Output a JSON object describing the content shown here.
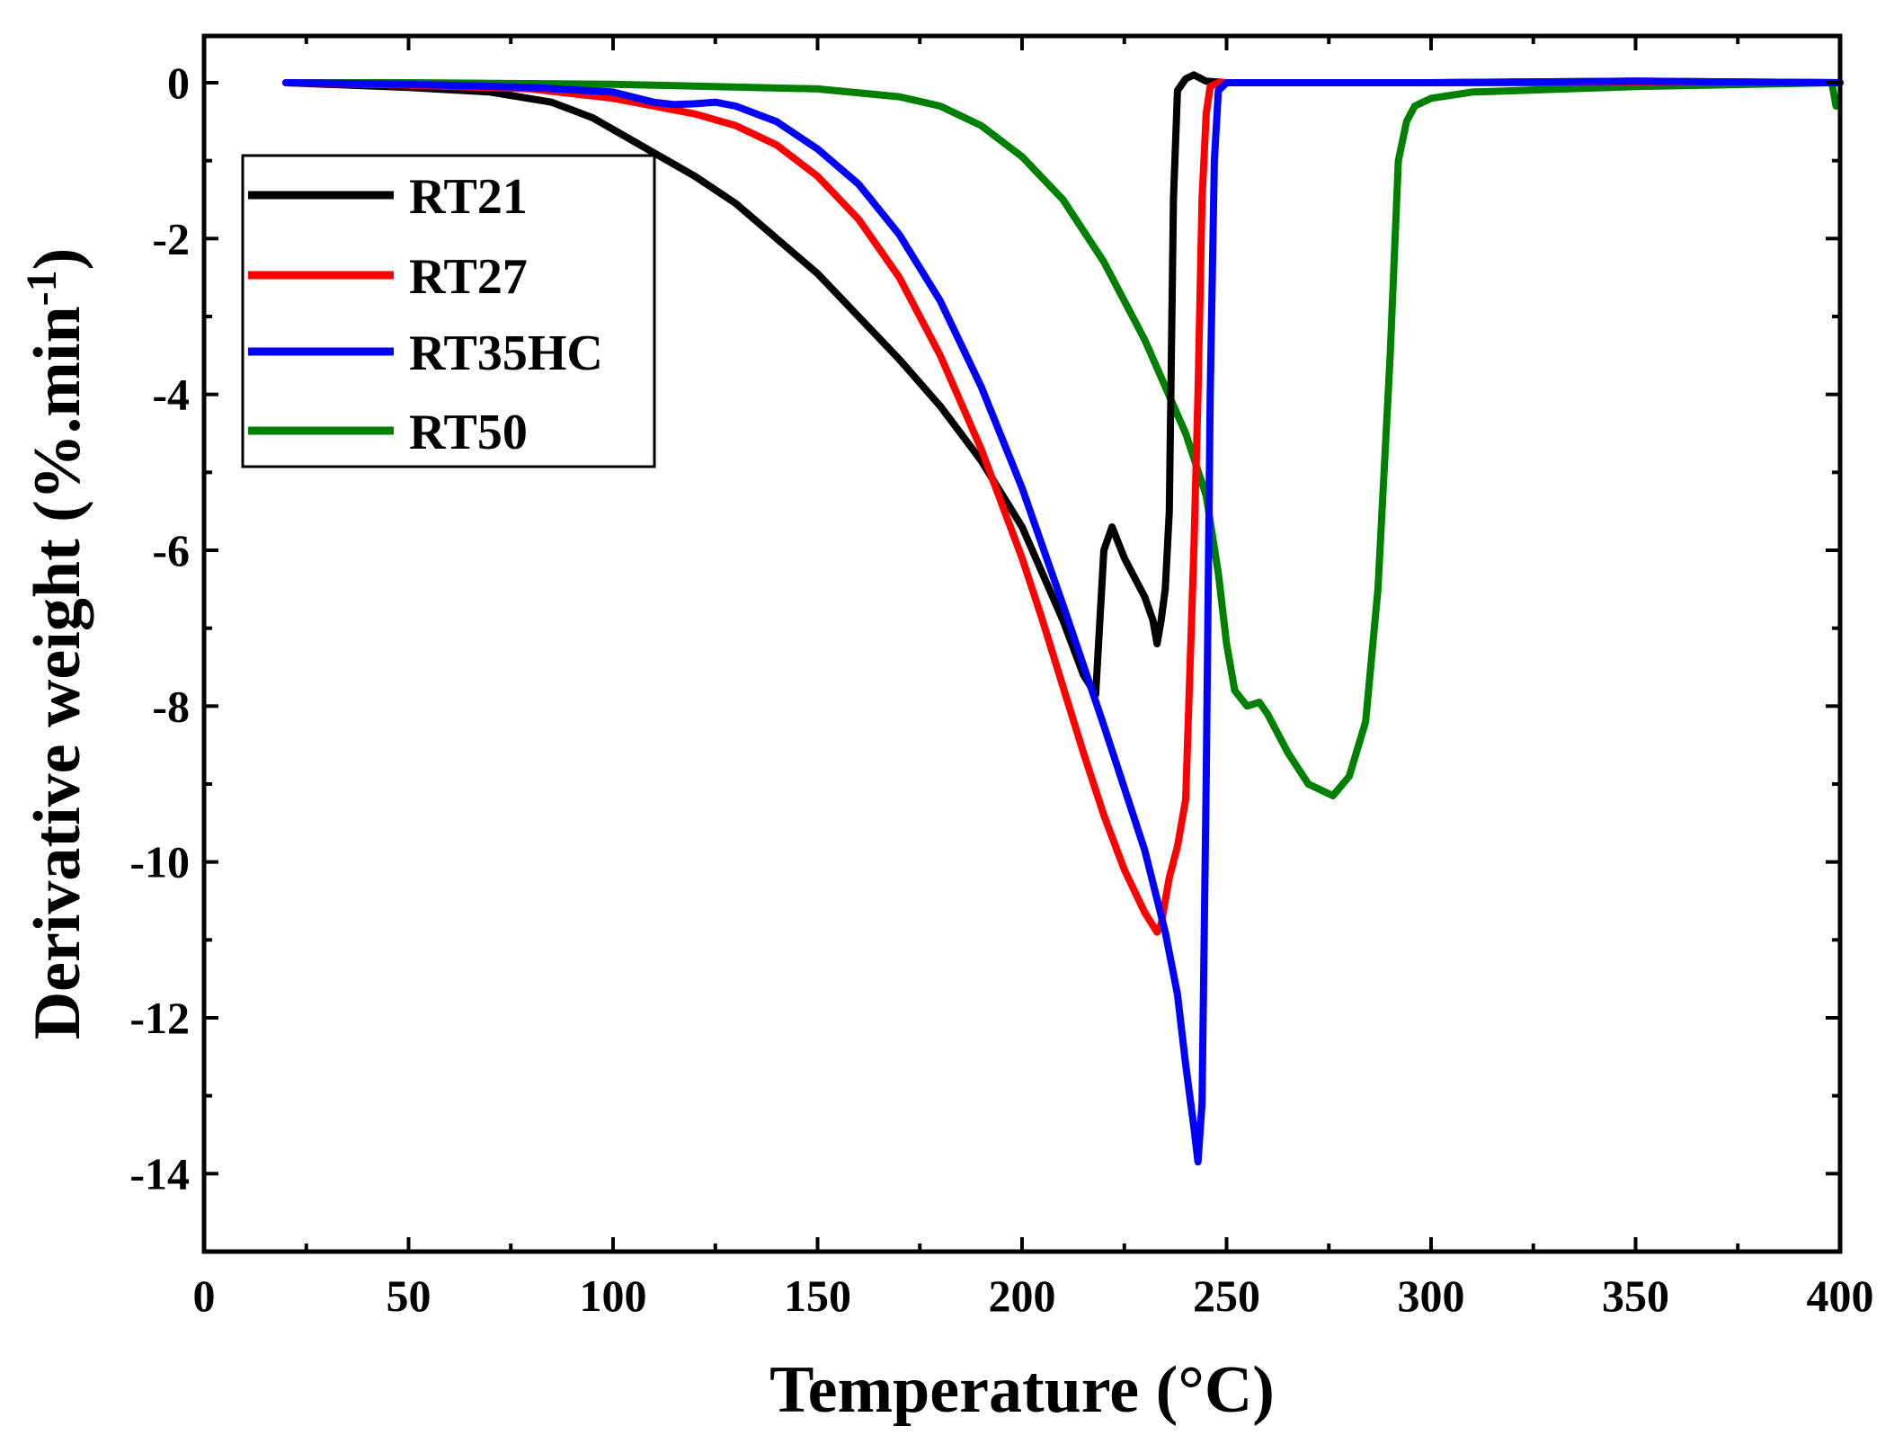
{
  "chart_data": {
    "type": "line",
    "title": "",
    "xlabel": "Temperature (°C)",
    "ylabel_main": "Derivative weight (%.min",
    "ylabel_sup": "-1",
    "ylabel_close": ")",
    "xlim": [
      0,
      400
    ],
    "ylim": [
      -15,
      0.6
    ],
    "xticks": [
      0,
      50,
      100,
      150,
      200,
      250,
      300,
      350,
      400
    ],
    "xtick_labels": [
      "0",
      "50",
      "100",
      "150",
      "200",
      "250",
      "300",
      "350",
      "400"
    ],
    "yticks": [
      0,
      -2,
      -4,
      -6,
      -8,
      -10,
      -12,
      -14
    ],
    "ytick_labels": [
      "0",
      "-2",
      "-4",
      "-6",
      "-8",
      "-10",
      "-12",
      "-14"
    ],
    "grid": false,
    "legend_position": "top-left",
    "series": [
      {
        "name": "RT21",
        "color": "#000000",
        "x": [
          20,
          30,
          50,
          70,
          85,
          95,
          100,
          110,
          120,
          130,
          140,
          150,
          160,
          170,
          180,
          190,
          200,
          205,
          210,
          215,
          218,
          220,
          222,
          225,
          228,
          230,
          232,
          233,
          234,
          235,
          236,
          237,
          238,
          240,
          242,
          245,
          250,
          300,
          350,
          400
        ],
        "y": [
          0,
          -0.02,
          -0.06,
          -0.12,
          -0.25,
          -0.45,
          -0.6,
          -0.9,
          -1.2,
          -1.55,
          -2.0,
          -2.45,
          -3.0,
          -3.55,
          -4.15,
          -4.85,
          -5.7,
          -6.3,
          -6.9,
          -7.6,
          -7.85,
          -6.0,
          -5.7,
          -6.1,
          -6.4,
          -6.6,
          -6.9,
          -7.2,
          -6.9,
          -6.5,
          -5.5,
          -1.5,
          -0.1,
          0.05,
          0.1,
          0.02,
          0.0,
          0.0,
          0.02,
          0.0
        ]
      },
      {
        "name": "RT27",
        "color": "#ff0000",
        "x": [
          20,
          50,
          80,
          100,
          110,
          120,
          130,
          140,
          150,
          160,
          170,
          180,
          190,
          200,
          205,
          210,
          215,
          220,
          225,
          230,
          233,
          234,
          236,
          238,
          240,
          242,
          243,
          244,
          245,
          246,
          248,
          250,
          300,
          350,
          400
        ],
        "y": [
          0,
          -0.03,
          -0.08,
          -0.2,
          -0.3,
          -0.4,
          -0.55,
          -0.8,
          -1.2,
          -1.75,
          -2.5,
          -3.5,
          -4.7,
          -6.1,
          -6.9,
          -7.75,
          -8.6,
          -9.4,
          -10.1,
          -10.65,
          -10.9,
          -10.8,
          -10.2,
          -9.8,
          -9.2,
          -6.0,
          -4.0,
          -1.5,
          -0.4,
          -0.05,
          0.0,
          0.0,
          0.0,
          0.0,
          0.0
        ]
      },
      {
        "name": "RT35HC",
        "color": "#0000ff",
        "x": [
          20,
          50,
          80,
          100,
          110,
          115,
          120,
          125,
          130,
          140,
          150,
          160,
          170,
          180,
          190,
          200,
          210,
          220,
          230,
          235,
          238,
          240,
          242,
          243,
          244,
          245,
          246,
          247,
          248,
          250,
          300,
          350,
          400
        ],
        "y": [
          0,
          -0.02,
          -0.06,
          -0.12,
          -0.25,
          -0.28,
          -0.27,
          -0.25,
          -0.3,
          -0.5,
          -0.85,
          -1.3,
          -1.95,
          -2.8,
          -3.9,
          -5.2,
          -6.7,
          -8.25,
          -9.85,
          -10.9,
          -11.7,
          -12.6,
          -13.4,
          -13.85,
          -13.1,
          -9.0,
          -4.0,
          -1.0,
          -0.1,
          0.0,
          0.0,
          0.02,
          0.0
        ]
      },
      {
        "name": "RT50",
        "color": "#008000",
        "x": [
          20,
          50,
          100,
          150,
          170,
          180,
          190,
          200,
          210,
          220,
          230,
          240,
          245,
          248,
          250,
          252,
          255,
          258,
          260,
          265,
          270,
          276,
          280,
          284,
          287,
          290,
          292,
          294,
          296,
          300,
          310,
          350,
          398,
          399
        ],
        "y": [
          0,
          0.0,
          -0.02,
          -0.08,
          -0.18,
          -0.3,
          -0.55,
          -0.95,
          -1.5,
          -2.3,
          -3.3,
          -4.5,
          -5.3,
          -6.3,
          -7.2,
          -7.8,
          -8.0,
          -7.95,
          -8.1,
          -8.6,
          -9.0,
          -9.15,
          -8.9,
          -8.2,
          -6.5,
          -3.5,
          -1.0,
          -0.5,
          -0.3,
          -0.2,
          -0.12,
          -0.05,
          0.0,
          -0.3
        ]
      }
    ]
  }
}
